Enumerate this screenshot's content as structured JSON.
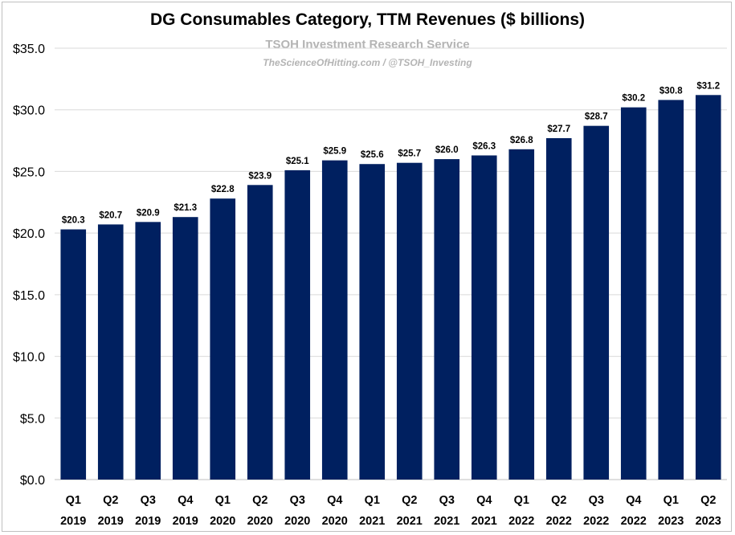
{
  "chart_data": {
    "type": "bar",
    "title": "DG Consumables Category, TTM Revenues ($ billions)",
    "watermark": {
      "line1": "TSOH Investment Research Service",
      "line2": "TheScienceOfHitting.com / @TSOH_Investing"
    },
    "categories": [
      [
        "Q1",
        "2019"
      ],
      [
        "Q2",
        "2019"
      ],
      [
        "Q3",
        "2019"
      ],
      [
        "Q4",
        "2019"
      ],
      [
        "Q1",
        "2020"
      ],
      [
        "Q2",
        "2020"
      ],
      [
        "Q3",
        "2020"
      ],
      [
        "Q4",
        "2020"
      ],
      [
        "Q1",
        "2021"
      ],
      [
        "Q2",
        "2021"
      ],
      [
        "Q3",
        "2021"
      ],
      [
        "Q4",
        "2021"
      ],
      [
        "Q1",
        "2022"
      ],
      [
        "Q2",
        "2022"
      ],
      [
        "Q3",
        "2022"
      ],
      [
        "Q4",
        "2022"
      ],
      [
        "Q1",
        "2023"
      ],
      [
        "Q2",
        "2023"
      ]
    ],
    "values": [
      20.3,
      20.7,
      20.9,
      21.3,
      22.8,
      23.9,
      25.1,
      25.9,
      25.6,
      25.7,
      26.0,
      26.3,
      26.8,
      27.7,
      28.7,
      30.2,
      30.8,
      31.2
    ],
    "data_labels": [
      "$20.3",
      "$20.7",
      "$20.9",
      "$21.3",
      "$22.8",
      "$23.9",
      "$25.1",
      "$25.9",
      "$25.6",
      "$25.7",
      "$26.0",
      "$26.3",
      "$26.8",
      "$27.7",
      "$28.7",
      "$30.2",
      "$30.8",
      "$31.2"
    ],
    "ylim": [
      0,
      35
    ],
    "yticks": [
      0,
      5,
      10,
      15,
      20,
      25,
      30,
      35
    ],
    "ytick_labels": [
      "$0.0",
      "$5.0",
      "$10.0",
      "$15.0",
      "$20.0",
      "$25.0",
      "$30.0",
      "$35.0"
    ],
    "xlabel": "",
    "ylabel": "",
    "grid": true,
    "legend": false,
    "colors": {
      "bar": "#002060",
      "grid": "#d9d9d9",
      "watermark": "#b4b4b4"
    }
  }
}
